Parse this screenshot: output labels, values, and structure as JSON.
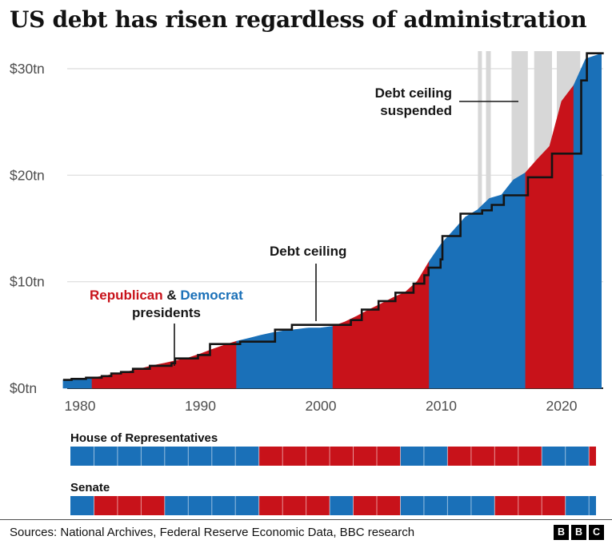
{
  "title": "US debt has risen regardless of administration",
  "chart_data": {
    "type": "area",
    "title": "US debt has risen regardless of administration",
    "xlabel": "",
    "ylabel": "",
    "x_domain": [
      1978.6,
      2023.5
    ],
    "y_domain": [
      0,
      31.6
    ],
    "grid": true,
    "y_ticks": [
      {
        "value": 0,
        "label": "$0tn"
      },
      {
        "value": 10,
        "label": "$10tn"
      },
      {
        "value": 20,
        "label": "$20tn"
      },
      {
        "value": 30,
        "label": "$30tn"
      }
    ],
    "x_ticks": [
      {
        "value": 1980,
        "label": "1980"
      },
      {
        "value": 1990,
        "label": "1990"
      },
      {
        "value": 2000,
        "label": "2000"
      },
      {
        "value": 2010,
        "label": "2010"
      },
      {
        "value": 2020,
        "label": "2020"
      }
    ],
    "party_colors": {
      "Republican": "#c8121a",
      "Democrat": "#1a70b8"
    },
    "suspension_color": "#d7d7d7",
    "debt_series": {
      "name": "US national debt ($tn)",
      "points": [
        [
          1978.6,
          0.78
        ],
        [
          1980,
          0.91
        ],
        [
          1981,
          1.0
        ],
        [
          1982,
          1.14
        ],
        [
          1983,
          1.38
        ],
        [
          1984,
          1.57
        ],
        [
          1985,
          1.82
        ],
        [
          1986,
          2.12
        ],
        [
          1987,
          2.35
        ],
        [
          1988,
          2.6
        ],
        [
          1989,
          2.86
        ],
        [
          1990,
          3.23
        ],
        [
          1991,
          3.67
        ],
        [
          1992,
          4.06
        ],
        [
          1993,
          4.41
        ],
        [
          1994,
          4.69
        ],
        [
          1995,
          4.97
        ],
        [
          1996,
          5.22
        ],
        [
          1997,
          5.41
        ],
        [
          1998,
          5.53
        ],
        [
          1999,
          5.66
        ],
        [
          2000,
          5.67
        ],
        [
          2001,
          5.81
        ],
        [
          2002,
          6.23
        ],
        [
          2003,
          6.78
        ],
        [
          2004,
          7.38
        ],
        [
          2005,
          7.93
        ],
        [
          2006,
          8.51
        ],
        [
          2007,
          9.01
        ],
        [
          2008,
          10.02
        ],
        [
          2009,
          11.91
        ],
        [
          2010,
          13.56
        ],
        [
          2011,
          14.79
        ],
        [
          2012,
          16.07
        ],
        [
          2013,
          16.74
        ],
        [
          2014,
          17.82
        ],
        [
          2015,
          18.15
        ],
        [
          2016,
          19.57
        ],
        [
          2017,
          20.24
        ],
        [
          2018,
          21.52
        ],
        [
          2019,
          22.72
        ],
        [
          2020,
          26.95
        ],
        [
          2021,
          28.43
        ],
        [
          2022,
          30.93
        ],
        [
          2023.3,
          31.42
        ]
      ]
    },
    "president_periods": [
      {
        "start": 1978.6,
        "end": 1981,
        "party": "Democrat"
      },
      {
        "start": 1981,
        "end": 1993,
        "party": "Republican"
      },
      {
        "start": 1993,
        "end": 2001,
        "party": "Democrat"
      },
      {
        "start": 2001,
        "end": 2009,
        "party": "Republican"
      },
      {
        "start": 2009,
        "end": 2017,
        "party": "Democrat"
      },
      {
        "start": 2017,
        "end": 2021,
        "party": "Republican"
      },
      {
        "start": 2021,
        "end": 2023.3,
        "party": "Democrat"
      }
    ],
    "debt_ceiling": {
      "name": "Debt ceiling",
      "steps": [
        [
          1978.6,
          0.78
        ],
        [
          1979.3,
          0.88
        ],
        [
          1980.5,
          0.99
        ],
        [
          1981.8,
          1.14
        ],
        [
          1982.6,
          1.39
        ],
        [
          1983.4,
          1.52
        ],
        [
          1984.4,
          1.82
        ],
        [
          1985.8,
          2.11
        ],
        [
          1987.6,
          2.35
        ],
        [
          1987.9,
          2.8
        ],
        [
          1989.8,
          3.12
        ],
        [
          1990.8,
          4.15
        ],
        [
          1993.3,
          4.37
        ],
        [
          1996.2,
          5.5
        ],
        [
          1997.6,
          5.95
        ],
        [
          2002.5,
          6.4
        ],
        [
          2003.4,
          7.38
        ],
        [
          2004.8,
          8.18
        ],
        [
          2006.2,
          8.97
        ],
        [
          2007.7,
          9.82
        ],
        [
          2008.6,
          10.61
        ],
        [
          2008.95,
          11.32
        ],
        [
          2009.95,
          12.1
        ],
        [
          2010.1,
          14.29
        ],
        [
          2011.6,
          16.39
        ],
        [
          2013.4,
          16.7
        ],
        [
          2014.2,
          17.21
        ],
        [
          2015.2,
          18.11
        ],
        [
          2017.2,
          19.81
        ],
        [
          2019.2,
          22.03
        ],
        [
          2021.63,
          28.9
        ],
        [
          2022.1,
          31.45
        ]
      ],
      "end": 2023.5
    },
    "suspension_bands": [
      [
        2013.05,
        2013.38
      ],
      [
        2013.72,
        2014.12
      ],
      [
        2015.85,
        2017.2
      ],
      [
        2017.72,
        2019.2
      ],
      [
        2019.6,
        2021.55
      ]
    ],
    "annotations": {
      "suspended": {
        "line1": "Debt ceiling",
        "line2": "suspended"
      },
      "ceiling": {
        "label": "Debt ceiling"
      },
      "presidents": {
        "republican": "Republican",
        "separator": " & ",
        "democrat": "Democrat",
        "line2": "presidents"
      }
    }
  },
  "congress_bars": {
    "x_domain": [
      1979,
      2023.6
    ],
    "bars": [
      {
        "label": "House of Representatives",
        "segments": [
          {
            "start": 1979,
            "end": 1995,
            "party": "Democrat"
          },
          {
            "start": 1995,
            "end": 2007,
            "party": "Republican"
          },
          {
            "start": 2007,
            "end": 2011,
            "party": "Democrat"
          },
          {
            "start": 2011,
            "end": 2019,
            "party": "Republican"
          },
          {
            "start": 2019,
            "end": 2023,
            "party": "Democrat"
          },
          {
            "start": 2023,
            "end": 2023.6,
            "party": "Republican"
          }
        ]
      },
      {
        "label": "Senate",
        "segments": [
          {
            "start": 1979,
            "end": 1981,
            "party": "Democrat"
          },
          {
            "start": 1981,
            "end": 1987,
            "party": "Republican"
          },
          {
            "start": 1987,
            "end": 1995,
            "party": "Democrat"
          },
          {
            "start": 1995,
            "end": 2001,
            "party": "Republican"
          },
          {
            "start": 2001,
            "end": 2003,
            "party": "Democrat"
          },
          {
            "start": 2003,
            "end": 2007,
            "party": "Republican"
          },
          {
            "start": 2007,
            "end": 2015,
            "party": "Democrat"
          },
          {
            "start": 2015,
            "end": 2021,
            "party": "Republican"
          },
          {
            "start": 2021,
            "end": 2023.6,
            "party": "Democrat"
          }
        ]
      }
    ]
  },
  "footer": {
    "sources": "Sources: National Archives, Federal Reserve Economic Data, BBC research",
    "logo_letters": [
      "B",
      "B",
      "C"
    ]
  }
}
